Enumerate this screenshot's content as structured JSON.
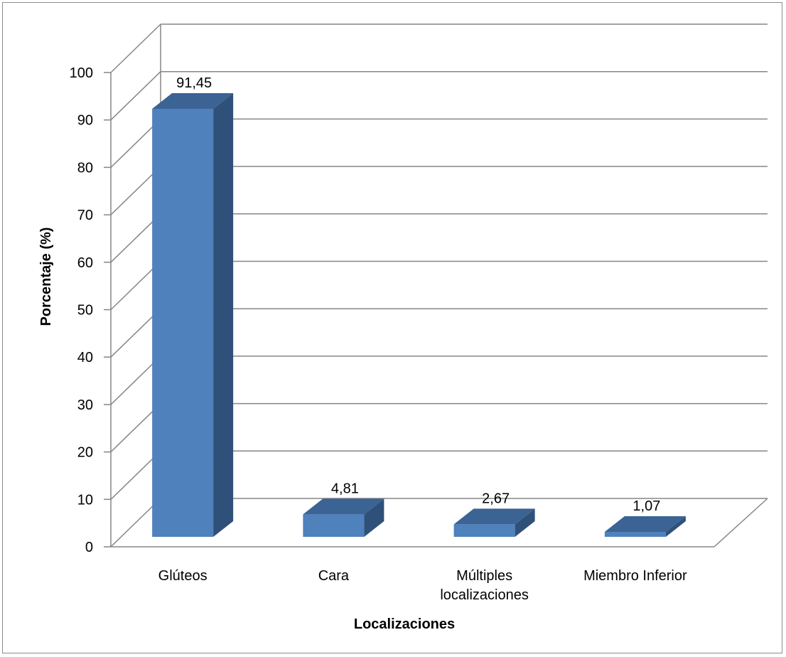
{
  "chart_data": {
    "type": "bar",
    "title": "",
    "xlabel": "Localizaciones",
    "ylabel": "Porcentaje (%)",
    "ylim": [
      0,
      100
    ],
    "yticks": [
      "0",
      "10",
      "20",
      "30",
      "40",
      "50",
      "60",
      "70",
      "80",
      "90",
      "100"
    ],
    "categories": [
      "Glúteos",
      "Cara",
      "Múltiples localizaciones",
      "Miembro Inferior"
    ],
    "category_lines": [
      [
        "Glúteos"
      ],
      [
        "Cara"
      ],
      [
        "Múltiples",
        "localizaciones"
      ],
      [
        "Miembro Inferior"
      ]
    ],
    "values": [
      91.45,
      4.81,
      2.67,
      1.07
    ],
    "value_labels": [
      "91,45",
      "4,81",
      "2,67",
      "1,07"
    ],
    "style": "3d-column",
    "grid": true,
    "legend": "none",
    "colors": {
      "front": "#4f81bd",
      "side": "#2f5079",
      "top": "#3b6394",
      "grid": "#868686"
    }
  }
}
